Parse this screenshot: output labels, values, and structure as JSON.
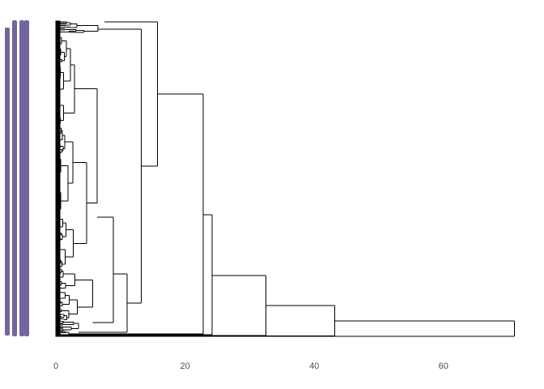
{
  "chart_data": {
    "type": "dendrogram",
    "orientation": "horizontal",
    "title": "",
    "xlabel": "",
    "ylabel": "",
    "xlim": [
      0,
      71
    ],
    "x_ticks": [
      {
        "value": 0,
        "label": "0"
      },
      {
        "value": 20,
        "label": "20"
      },
      {
        "value": 40,
        "label": "40"
      },
      {
        "value": 60,
        "label": "60"
      }
    ],
    "grid": false,
    "leaf_label_color": "#5b4a8c",
    "line_color": "#000000",
    "major_merge_heights": [
      71.0,
      43.2,
      32.5,
      24.2,
      22.8,
      15.7,
      13.2,
      11.0,
      8.9,
      7.1
    ]
  }
}
